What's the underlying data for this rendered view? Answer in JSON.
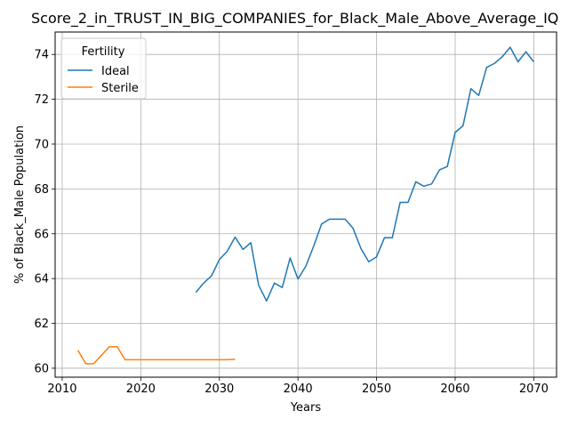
{
  "chart_data": {
    "type": "line",
    "title": "Score_2_in_TRUST_IN_BIG_COMPANIES_for_Black_Male_Above_Average_IQ",
    "xlabel": "Years",
    "ylabel": "% of Black_Male Population",
    "xlim": [
      2009.1,
      2072.9
    ],
    "ylim": [
      59.6,
      75.0
    ],
    "xticks": [
      2010,
      2020,
      2030,
      2040,
      2050,
      2060,
      2070
    ],
    "yticks": [
      60,
      62,
      64,
      66,
      68,
      70,
      72,
      74
    ],
    "grid": true,
    "legend": {
      "title": "Fertility",
      "placement": "top-left"
    },
    "series": [
      {
        "name": "Ideal",
        "color": "#1f77b4",
        "x": [
          2027,
          2028,
          2029,
          2030,
          2031,
          2032,
          2033,
          2034,
          2035,
          2036,
          2037,
          2038,
          2039,
          2040,
          2041,
          2042,
          2043,
          2044,
          2045,
          2046,
          2047,
          2048,
          2049,
          2050,
          2051,
          2052,
          2053,
          2054,
          2055,
          2056,
          2057,
          2058,
          2059,
          2060,
          2061,
          2062,
          2063,
          2064,
          2065,
          2066,
          2067,
          2068,
          2069,
          2070
        ],
        "y": [
          63.38,
          63.8,
          64.12,
          64.85,
          65.22,
          65.85,
          65.3,
          65.6,
          63.7,
          63.0,
          63.8,
          63.6,
          64.92,
          63.98,
          64.55,
          65.45,
          66.43,
          66.65,
          66.65,
          66.65,
          66.25,
          65.35,
          64.75,
          64.97,
          65.82,
          65.82,
          67.4,
          67.4,
          68.32,
          68.12,
          68.22,
          68.85,
          69.0,
          70.52,
          70.82,
          72.47,
          72.17,
          73.42,
          73.6,
          73.9,
          74.32,
          73.67,
          74.12,
          73.67
        ]
      },
      {
        "name": "Sterile",
        "color": "#ff7f0e",
        "x": [
          2012,
          2013,
          2014,
          2015,
          2016,
          2017,
          2018,
          2019,
          2020,
          2021,
          2022,
          2023,
          2024,
          2025,
          2026,
          2027,
          2028,
          2029,
          2030,
          2031,
          2032
        ],
        "y": [
          60.8,
          60.2,
          60.2,
          60.58,
          60.96,
          60.96,
          60.38,
          60.38,
          60.38,
          60.38,
          60.38,
          60.38,
          60.38,
          60.38,
          60.38,
          60.38,
          60.38,
          60.38,
          60.38,
          60.38,
          60.4
        ]
      }
    ]
  }
}
